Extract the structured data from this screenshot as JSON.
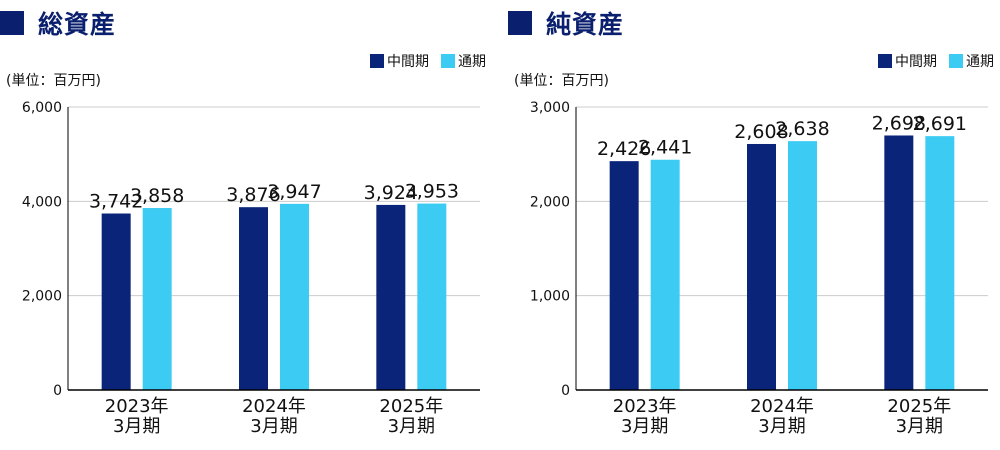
{
  "colors": {
    "title": "#0a1f6e",
    "interim": "#0a2479",
    "full": "#3ccbf2",
    "grid": "#cccccc",
    "axis": "#000000"
  },
  "panels": [
    {
      "title": "総資産",
      "unit": "(単位：百万円)",
      "legend": [
        "中間期",
        "通期"
      ]
    },
    {
      "title": "純資産",
      "unit": "(単位：百万円)",
      "legend": [
        "中間期",
        "通期"
      ]
    }
  ],
  "chart_data": [
    {
      "type": "bar",
      "title": "総資産",
      "ylabel": "(単位：百万円)",
      "categories": [
        "2023年\n3月期",
        "2024年\n3月期",
        "2025年\n3月期"
      ],
      "series": [
        {
          "name": "中間期",
          "values": [
            3742,
            3876,
            3924
          ]
        },
        {
          "name": "通期",
          "values": [
            3858,
            3947,
            3953
          ]
        }
      ],
      "value_labels": [
        [
          "3,742",
          "3,876",
          "3,924"
        ],
        [
          "3,858",
          "3,947",
          "3,953"
        ]
      ],
      "yticks": [
        "0",
        "2,000",
        "4,000",
        "6,000"
      ],
      "ytick_values": [
        0,
        2000,
        4000,
        6000
      ],
      "ylim": [
        0,
        6000
      ],
      "grid": true,
      "legend_position": "top-right"
    },
    {
      "type": "bar",
      "title": "純資産",
      "ylabel": "(単位：百万円)",
      "categories": [
        "2023年\n3月期",
        "2024年\n3月期",
        "2025年\n3月期"
      ],
      "series": [
        {
          "name": "中間期",
          "values": [
            2426,
            2608,
            2698
          ]
        },
        {
          "name": "通期",
          "values": [
            2441,
            2638,
            2691
          ]
        }
      ],
      "value_labels": [
        [
          "2,426",
          "2,608",
          "2,698"
        ],
        [
          "2,441",
          "2,638",
          "2,691"
        ]
      ],
      "yticks": [
        "0",
        "1,000",
        "2,000",
        "3,000"
      ],
      "ytick_values": [
        0,
        1000,
        2000,
        3000
      ],
      "ylim": [
        0,
        3000
      ],
      "grid": true,
      "legend_position": "top-right"
    }
  ]
}
